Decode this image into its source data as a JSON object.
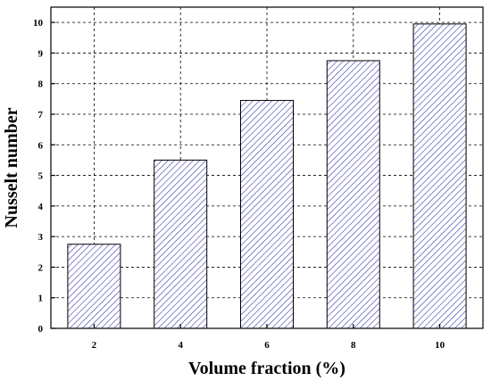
{
  "colors": {
    "bar_fill": "#ffffff",
    "bar_hatch": "#3b3bb0",
    "bar_edge": "#000000",
    "grid": "#000000",
    "axis": "#000000"
  },
  "chart_data": {
    "type": "bar",
    "categories": [
      "2",
      "4",
      "6",
      "8",
      "10"
    ],
    "values": [
      2.75,
      5.5,
      7.45,
      8.75,
      9.95
    ],
    "xlabel": "Volume fraction (%)",
    "ylabel": "Nusselt number",
    "ylim": [
      0,
      10.5
    ],
    "yticks": [
      "0",
      "1",
      "2",
      "3",
      "4",
      "5",
      "6",
      "7",
      "8",
      "9",
      "10"
    ],
    "grid": true,
    "grid_style": "dashed",
    "bar_pattern": "diagonal-hatch",
    "legend": "none"
  }
}
